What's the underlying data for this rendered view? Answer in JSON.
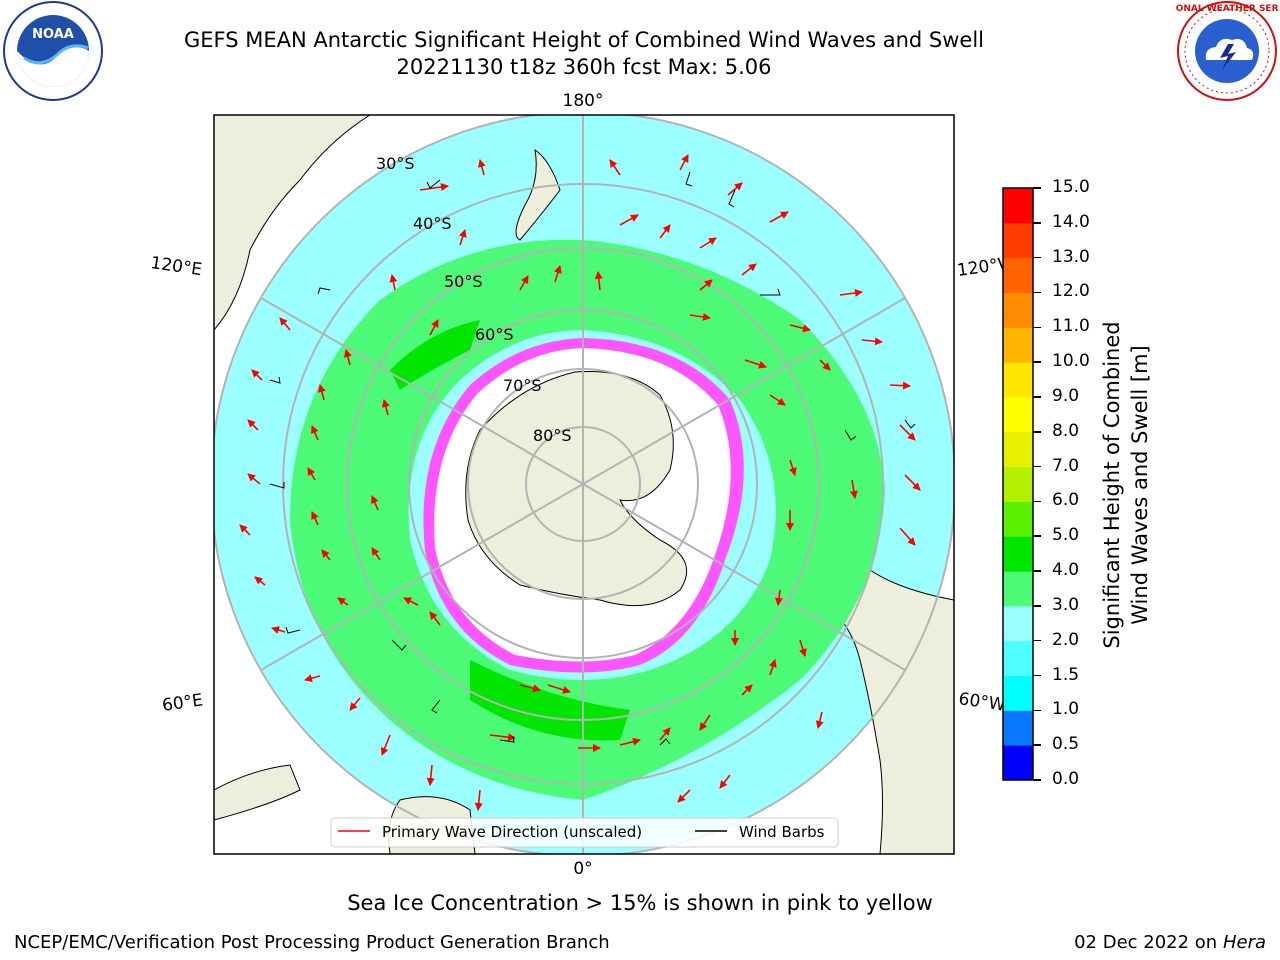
{
  "title": {
    "line1": "GEFS MEAN Antarctic Significant Height of Combined Wind Waves and Swell",
    "line2": "20221130 t18z 360h fcst   Max: 5.06"
  },
  "logos": {
    "left": "NOAA",
    "right": "NATIONAL WEATHER SERVICE"
  },
  "map": {
    "meridian_labels": {
      "top": "180°",
      "bottom": "0°",
      "left_upper": "120°E",
      "left_lower": "60°E",
      "right_upper": "120°W",
      "right_lower": "60°W"
    },
    "latitude_labels": [
      "30°S",
      "40°S",
      "50°S",
      "60°S",
      "70°S",
      "80°S"
    ],
    "legend": {
      "wave": "Primary Wave Direction (unscaled)",
      "barbs": "Wind Barbs"
    },
    "colors": {
      "land": "#eeeedc",
      "ice": "#ffffff",
      "wave_green": "#4cfa78",
      "wave_cyan": "#9cffff",
      "arrow": "#ff0000"
    }
  },
  "colorbar": {
    "label_line1": "Significant Height of Combined",
    "label_line2": "Wind Waves and Swell [m]",
    "ticks": [
      "0.0",
      "0.5",
      "1.0",
      "1.5",
      "2.0",
      "3.0",
      "4.0",
      "5.0",
      "6.0",
      "7.0",
      "8.0",
      "9.0",
      "10.0",
      "11.0",
      "12.0",
      "13.0",
      "14.0",
      "15.0"
    ],
    "colors": [
      "#0000ff",
      "#0a78ff",
      "#00ffff",
      "#50ffff",
      "#9cffff",
      "#4cfa78",
      "#00e600",
      "#5af000",
      "#b4f000",
      "#e6f000",
      "#ffff00",
      "#ffe600",
      "#ffb400",
      "#ff8c00",
      "#ff6400",
      "#ff3c00",
      "#ff0000"
    ]
  },
  "caption": "Sea Ice Concentration > 15% is shown in pink to yellow",
  "footer": {
    "left": "NCEP/EMC/Verification Post Processing Product Generation Branch",
    "right_date": "02 Dec 2022 on",
    "right_host": "Hera"
  }
}
